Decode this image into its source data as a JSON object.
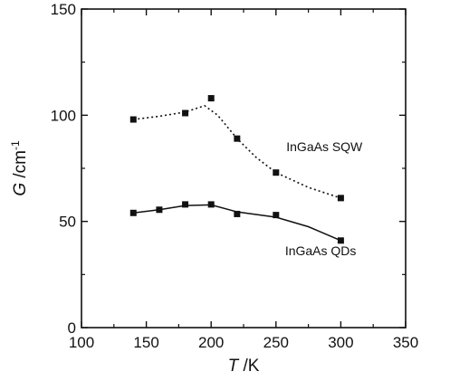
{
  "chart_data": {
    "type": "line",
    "xlabel_var": "T",
    "xlabel_unit": " /K",
    "ylabel_var": "G",
    "ylabel_unit": " /cm",
    "ylabel_exp": "-1",
    "xlim": [
      100,
      350
    ],
    "ylim": [
      0,
      150
    ],
    "xticks": [
      100,
      150,
      200,
      250,
      300,
      350
    ],
    "yticks": [
      0,
      50,
      100,
      150
    ],
    "grid": false,
    "series": [
      {
        "name": "InGaAs SQW",
        "style": "dotted",
        "color": "#111111",
        "points": [
          [
            140,
            98
          ],
          [
            180,
            101
          ],
          [
            200,
            108
          ],
          [
            220,
            89
          ],
          [
            250,
            73
          ],
          [
            300,
            61
          ]
        ],
        "curve": [
          [
            140,
            98
          ],
          [
            160,
            99.5
          ],
          [
            180,
            101.5
          ],
          [
            195,
            104.5
          ],
          [
            205,
            100
          ],
          [
            220,
            89
          ],
          [
            235,
            80
          ],
          [
            250,
            73
          ],
          [
            275,
            66
          ],
          [
            300,
            61
          ]
        ]
      },
      {
        "name": "InGaAs QDs",
        "style": "solid",
        "color": "#111111",
        "points": [
          [
            140,
            54
          ],
          [
            160,
            55.5
          ],
          [
            180,
            58
          ],
          [
            200,
            58
          ],
          [
            220,
            53.5
          ],
          [
            250,
            53
          ],
          [
            300,
            41
          ]
        ],
        "curve": [
          [
            140,
            54
          ],
          [
            160,
            55.5
          ],
          [
            180,
            57.5
          ],
          [
            200,
            57.8
          ],
          [
            220,
            54.5
          ],
          [
            250,
            52
          ],
          [
            275,
            47.5
          ],
          [
            300,
            41
          ]
        ]
      }
    ]
  }
}
